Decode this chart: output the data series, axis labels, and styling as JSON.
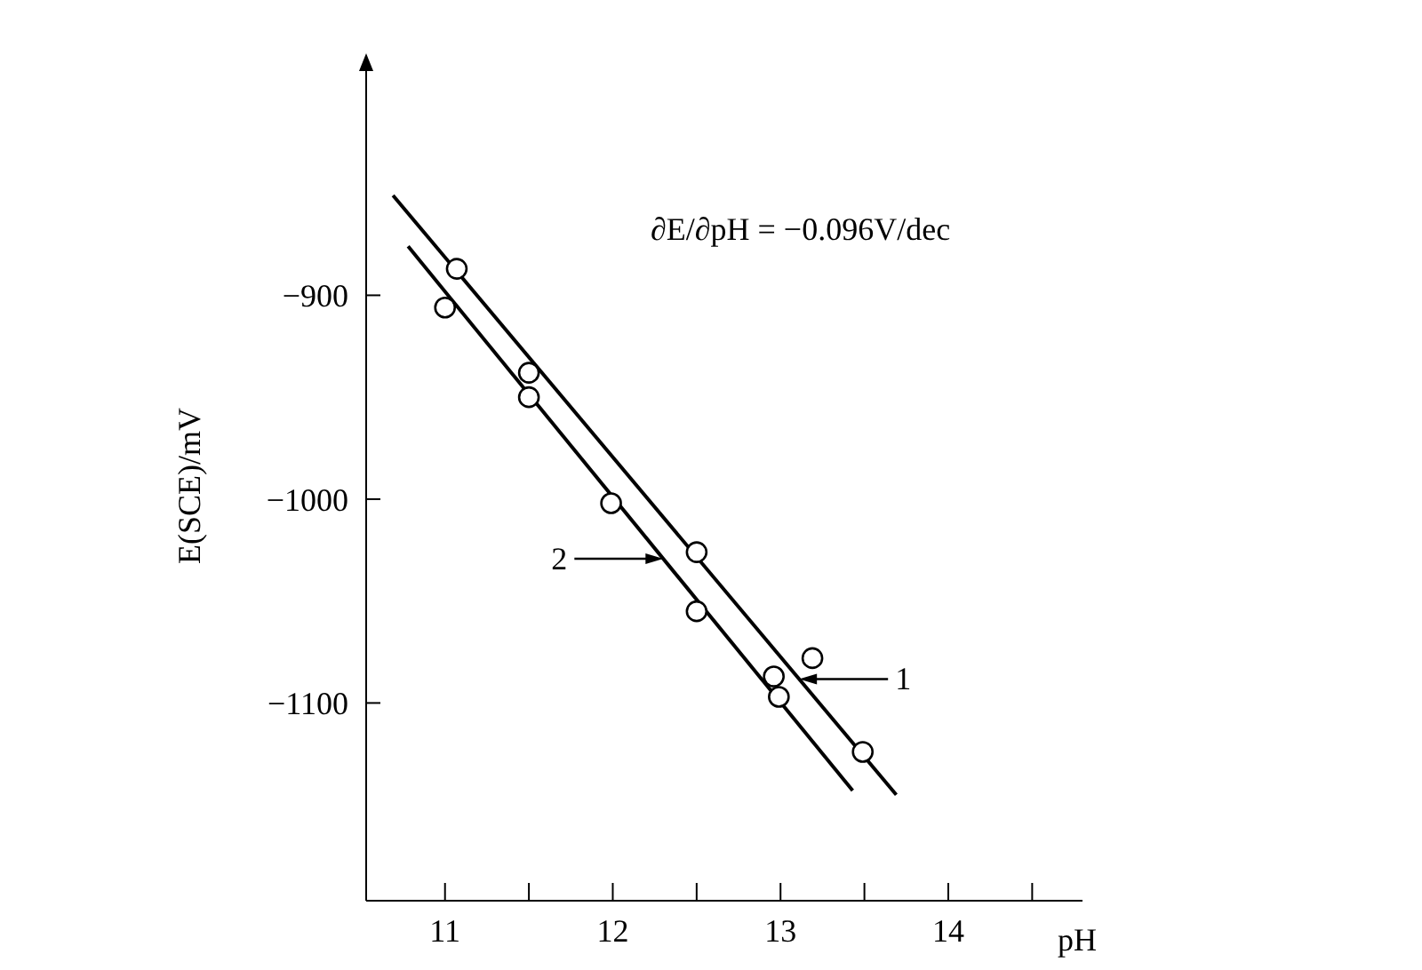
{
  "chart_data": {
    "type": "scatter",
    "xlabel": "pH",
    "ylabel": "E(SCE)/mV",
    "xlim": [
      10.53,
      14.8
    ],
    "ylim": [
      -1197,
      -790
    ],
    "xticks": [
      11,
      {
        "value": 11.5,
        "label": null
      },
      12,
      {
        "value": 12.5,
        "label": null
      },
      13,
      {
        "value": 13.5,
        "label": null
      },
      14,
      {
        "value": 14.5,
        "label": null
      }
    ],
    "yticks": [
      -900,
      -1000,
      -1100
    ],
    "grid": false,
    "legend": false,
    "marker": "circle",
    "series": [
      {
        "color": "#000000",
        "x": [
          11.0,
          11.07,
          11.5,
          11.5,
          11.99,
          12.5,
          12.5,
          12.96,
          12.99,
          13.19,
          13.49
        ],
        "values": [
          -906,
          -887,
          -938,
          -950,
          -1002,
          -1026,
          -1055,
          -1087,
          -1097,
          -1078,
          -1124
        ]
      },
      {
        "type": "line",
        "color": "#000000",
        "marker": "none",
        "line_style": "solid",
        "x": [
          10.69,
          13.69
        ],
        "values": [
          -851,
          -1145
        ]
      },
      {
        "type": "line",
        "color": "#000000",
        "marker": "none",
        "line_style": "solid",
        "x": [
          10.78,
          13.43
        ],
        "values": [
          -876,
          -1143
        ]
      }
    ],
    "annotations": [
      "∂E/∂pH = −0.096V/dec",
      "1",
      "2"
    ]
  }
}
